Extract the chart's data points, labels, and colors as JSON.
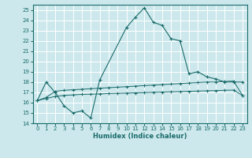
{
  "xlabel": "Humidex (Indice chaleur)",
  "bg_color": "#cce8ec",
  "grid_color": "#ffffff",
  "line_color": "#1a6b6b",
  "xlim": [
    -0.5,
    23.5
  ],
  "ylim": [
    14,
    25.5
  ],
  "yticks": [
    14,
    15,
    16,
    17,
    18,
    19,
    20,
    21,
    22,
    23,
    24,
    25
  ],
  "xticks": [
    0,
    1,
    2,
    3,
    4,
    5,
    6,
    7,
    8,
    9,
    10,
    11,
    12,
    13,
    14,
    15,
    16,
    17,
    18,
    19,
    20,
    21,
    22,
    23
  ],
  "series1_x": [
    0,
    1,
    2,
    3,
    4,
    5,
    6,
    7,
    10,
    11,
    12,
    13,
    14,
    15,
    16,
    17,
    18,
    19,
    20,
    21,
    22,
    23
  ],
  "series1_y": [
    16.2,
    18.0,
    17.0,
    15.7,
    15.0,
    15.2,
    14.5,
    18.2,
    23.3,
    24.3,
    25.2,
    23.8,
    23.5,
    22.2,
    22.0,
    18.8,
    19.0,
    18.5,
    18.3,
    18.0,
    18.0,
    18.0
  ],
  "series2_x": [
    0,
    1,
    2,
    3,
    4,
    5,
    6,
    7,
    8,
    9,
    10,
    11,
    12,
    13,
    14,
    15,
    16,
    17,
    18,
    19,
    20,
    21,
    22,
    23
  ],
  "series2_y": [
    16.2,
    16.5,
    17.1,
    17.2,
    17.25,
    17.3,
    17.35,
    17.4,
    17.45,
    17.5,
    17.55,
    17.6,
    17.65,
    17.7,
    17.75,
    17.8,
    17.85,
    17.9,
    17.95,
    18.0,
    18.0,
    18.05,
    18.1,
    16.7
  ],
  "series3_x": [
    0,
    1,
    2,
    3,
    4,
    5,
    6,
    7,
    8,
    9,
    10,
    11,
    12,
    13,
    14,
    15,
    16,
    17,
    18,
    19,
    20,
    21,
    22,
    23
  ],
  "series3_y": [
    16.2,
    16.4,
    16.6,
    16.7,
    16.75,
    16.8,
    16.82,
    16.85,
    16.88,
    16.9,
    16.92,
    16.95,
    16.97,
    17.0,
    17.02,
    17.05,
    17.07,
    17.1,
    17.12,
    17.15,
    17.17,
    17.2,
    17.22,
    16.7
  ],
  "tick_fontsize": 5.0,
  "xlabel_fontsize": 6.0
}
